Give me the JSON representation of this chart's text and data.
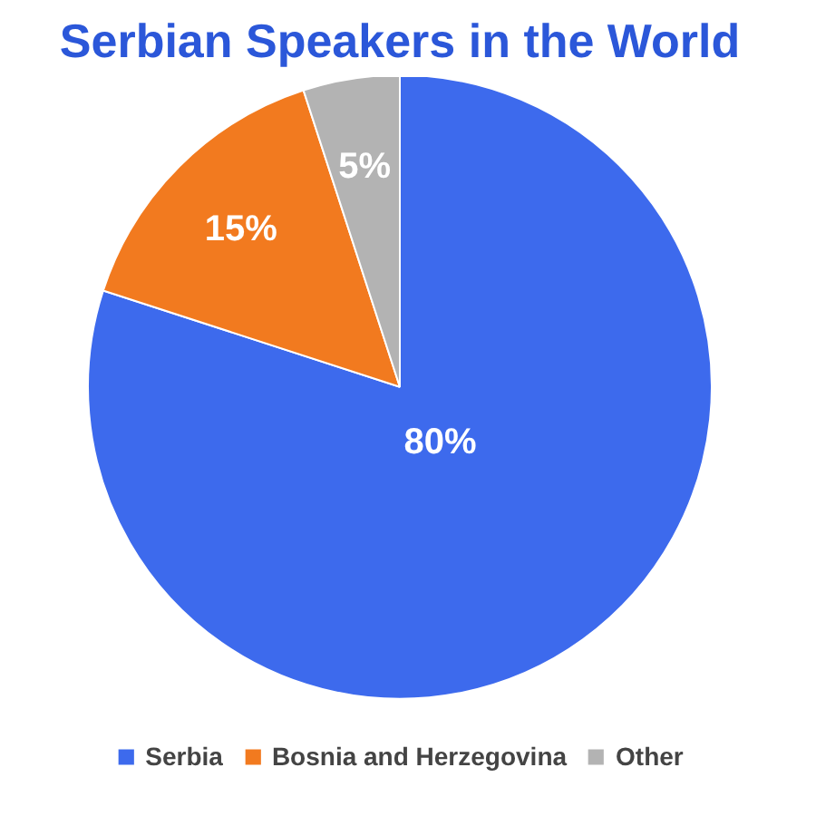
{
  "chart_data": {
    "type": "pie",
    "title": "Serbian Speakers in the World",
    "categories": [
      "Serbia",
      "Bosnia and Herzegovina",
      "Other"
    ],
    "values": [
      80,
      15,
      5
    ],
    "colors": [
      "#3d6aed",
      "#f27a1f",
      "#b3b3b3"
    ],
    "value_labels": [
      "80%",
      "15%",
      "5%"
    ],
    "legend": "bottom"
  }
}
